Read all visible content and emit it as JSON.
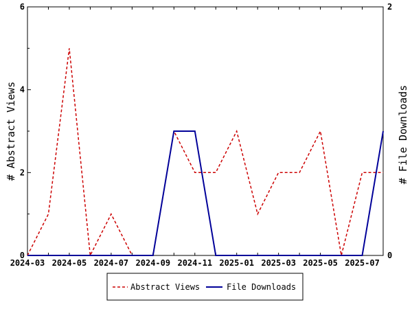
{
  "chart_data": {
    "type": "line",
    "x": [
      "2024-03",
      "2024-04",
      "2024-05",
      "2024-06",
      "2024-07",
      "2024-08",
      "2024-09",
      "2024-10",
      "2024-11",
      "2024-12",
      "2025-01",
      "2025-02",
      "2025-03",
      "2025-04",
      "2025-05",
      "2025-06",
      "2025-07",
      "2025-08"
    ],
    "x_tick_labels": [
      "2024-03",
      "2024-05",
      "2024-07",
      "2024-09",
      "2024-11",
      "2025-01",
      "2025-03",
      "2025-05",
      "2025-07"
    ],
    "series": [
      {
        "name": "Abstract Views",
        "axis": "left",
        "color": "#cc0000",
        "style": "dashed",
        "values": [
          0,
          1,
          5,
          0,
          1,
          0,
          0,
          3,
          2,
          2,
          3,
          1,
          2,
          2,
          3,
          0,
          2,
          2
        ]
      },
      {
        "name": "File Downloads",
        "axis": "right",
        "color": "#000099",
        "style": "solid",
        "values": [
          0,
          0,
          0,
          0,
          0,
          0,
          0,
          1,
          1,
          0,
          0,
          0,
          0,
          0,
          0,
          0,
          0,
          1
        ]
      }
    ],
    "y_left": {
      "label": "# Abstract Views",
      "lim": [
        0,
        6
      ],
      "ticks": [
        "0",
        "2",
        "4",
        "6"
      ]
    },
    "y_right": {
      "label": "# File Downloads",
      "lim": [
        0,
        2
      ],
      "ticks": [
        "0",
        "2"
      ]
    },
    "grid": false,
    "legend": "bottom"
  }
}
